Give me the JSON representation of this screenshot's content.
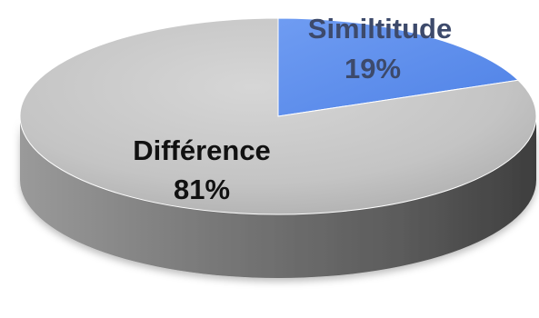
{
  "chart_data": {
    "type": "pie",
    "style": "3d",
    "slices": [
      {
        "label": "Similtitude",
        "value": 19,
        "display": "19%",
        "color": "#5B8EEE",
        "label_color": "#3D4A6B"
      },
      {
        "label": "Différence",
        "value": 81,
        "display": "81%",
        "color": "#C6C6C6",
        "label_color": "#111111"
      }
    ],
    "start_angle_deg": 0,
    "legend": "none"
  }
}
